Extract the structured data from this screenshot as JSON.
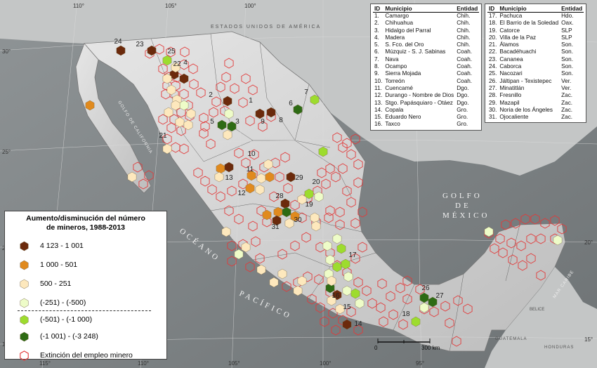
{
  "map": {
    "country_label": "ESTADOS UNIDOS DE AMÉRICA",
    "sea_labels": {
      "golfo_mexico_1": "GOLFO",
      "golfo_mexico_2": "DE",
      "golfo_mexico_3": "MÉXICO",
      "oceano_pacifico_1": "OCÉANO",
      "oceano_pacifico_2": "PACÍFICO",
      "golfo_california": "GOLFO DE CALIFORNIA",
      "mar_caribe": "MAR CARIBE",
      "belice": "BELICE",
      "guatemala": "GUATEMALA",
      "honduras": "HONDURAS"
    },
    "coords": {
      "lon_110_top": "110°",
      "lon_105_top": "105°",
      "lon_100_top": "100°",
      "lon_115_bot": "115°",
      "lon_110_bot": "110°",
      "lon_105_bot": "105°",
      "lon_100_bot": "100°",
      "lon_95_bot": "95°",
      "lat_30_l": "30°",
      "lat_25_l": "25°",
      "lat_20_l": "20°",
      "lat_15_l": "15°",
      "lat_20_r": "20°",
      "lat_15_r": "15°"
    },
    "scale_bar": {
      "start": "0",
      "end": "300 km"
    },
    "colors": {
      "cat1": "#6b2a0c",
      "cat2": "#e08a1e",
      "cat3": "#fde8bd",
      "cat4": "#eefcc8",
      "cat5": "#9ddc2e",
      "cat6": "#2e6b14",
      "extinction": "#e23a3a"
    }
  },
  "legend": {
    "title_line1": "Aumento/disminución del número",
    "title_line2": "de mineros, 1988-2013",
    "items": [
      {
        "label": "4 123 - 1 001",
        "color": "#6b2a0c",
        "outline": false
      },
      {
        "label": "1 000 - 501",
        "color": "#e08a1e",
        "outline": false
      },
      {
        "label": "500 - 251",
        "color": "#fde8bd",
        "outline": false
      },
      {
        "label": "(-251) - (-500)",
        "color": "#eefcc8",
        "outline": false
      },
      {
        "label": "(-501) - (-1 000)",
        "color": "#9ddc2e",
        "outline": false
      },
      {
        "label": "(-1 001) - (-3 248)",
        "color": "#2e6b14",
        "outline": false
      },
      {
        "label": "Extinción del empleo minero",
        "color": "#e23a3a",
        "outline": true
      }
    ]
  },
  "table_left": {
    "headers": [
      "ID",
      "Municipio",
      "Entidad"
    ],
    "rows": [
      [
        "1.",
        "Camargo",
        "Chih."
      ],
      [
        "2.",
        "Chihuahua",
        "Chih."
      ],
      [
        "3.",
        "Hidalgo del Parral",
        "Chih."
      ],
      [
        "4.",
        "Madera",
        "Chih."
      ],
      [
        "5.",
        "S. Fco. del Oro",
        "Chih."
      ],
      [
        "6.",
        "Múzquiz - S. J. Sabinas",
        "Coah."
      ],
      [
        "7.",
        "Nava",
        "Coah."
      ],
      [
        "8.",
        "Ocampo",
        "Coah."
      ],
      [
        "9.",
        "Sierra Mojada",
        "Coah."
      ],
      [
        "10.",
        "Torreón",
        "Coah."
      ],
      [
        "11.",
        "Cuencamé",
        "Dgo."
      ],
      [
        "12.",
        "Durango - Nombre de Dios",
        "Dgo."
      ],
      [
        "13.",
        "Stgo. Papásquiaro - Otáez",
        "Dgo."
      ],
      [
        "14.",
        "Copala",
        "Gro."
      ],
      [
        "15.",
        "Eduardo Nero",
        "Gro."
      ],
      [
        "16.",
        "Taxco",
        "Gro."
      ]
    ]
  },
  "table_right": {
    "headers": [
      "ID",
      "Municipio",
      "Entidad"
    ],
    "rows": [
      [
        "17.",
        "Pachuca",
        "Hdo."
      ],
      [
        "18.",
        "El Barrio de la Soledad",
        "Oax."
      ],
      [
        "19.",
        "Catorce",
        "SLP"
      ],
      [
        "20.",
        "Villa de la Paz",
        "SLP"
      ],
      [
        "21.",
        "Álamos",
        "Son."
      ],
      [
        "22.",
        "Bacadéhuachi",
        "Son."
      ],
      [
        "23.",
        "Cananea",
        "Son."
      ],
      [
        "24.",
        "Caborca",
        "Son."
      ],
      [
        "25.",
        "Nacozari",
        "Son."
      ],
      [
        "26.",
        "Jáltipan - Texistepec",
        "Ver."
      ],
      [
        "27.",
        "Minatitlán",
        "Ver."
      ],
      [
        "28.",
        "Fresnillo",
        "Zac."
      ],
      [
        "29.",
        "Mazapil",
        "Zac."
      ],
      [
        "30.",
        "Noria de los Ángeles",
        "Zac."
      ],
      [
        "31.",
        "Ojocaliente",
        "Zac."
      ]
    ]
  },
  "map_labels": [
    "1",
    "2",
    "3",
    "4",
    "5",
    "6",
    "7",
    "8",
    "9",
    "10",
    "11",
    "12",
    "13",
    "14",
    "15",
    "16",
    "17",
    "18",
    "19",
    "20",
    "21",
    "22",
    "23",
    "24",
    "25",
    "26",
    "27",
    "28",
    "29",
    "30",
    "31"
  ]
}
